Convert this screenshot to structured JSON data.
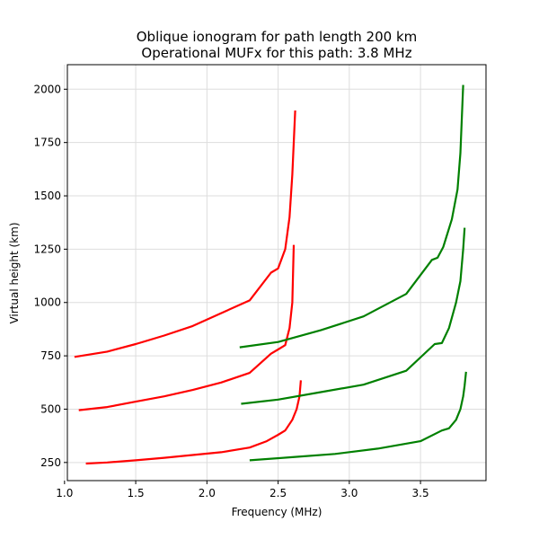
{
  "chart_data": {
    "type": "line",
    "title": "Oblique ionogram for path length 200 km",
    "subtitle": "Operational MUFx for this path: 3.8 MHz",
    "xlabel": "Frequency (MHz)",
    "ylabel": "Virtual height (km)",
    "xlim": [
      1.02,
      3.96
    ],
    "ylim": [
      165,
      2115
    ],
    "xticks": [
      1.0,
      1.5,
      2.0,
      2.5,
      3.0,
      3.5
    ],
    "xtick_labels": [
      "1.0",
      "1.5",
      "2.0",
      "2.5",
      "3.0",
      "3.5"
    ],
    "yticks": [
      250,
      500,
      750,
      1000,
      1250,
      1500,
      1750,
      2000
    ],
    "ytick_labels": [
      "250",
      "500",
      "750",
      "1000",
      "1250",
      "1500",
      "1750",
      "2000"
    ],
    "grid": true,
    "colors": {
      "red": "#ff0000",
      "green": "#008000"
    },
    "series": [
      {
        "color": "red",
        "x": [
          1.15,
          1.3,
          1.5,
          1.7,
          1.9,
          2.1,
          2.3,
          2.42,
          2.5,
          2.55,
          2.6,
          2.63,
          2.65,
          2.66
        ],
        "y": [
          245,
          250,
          260,
          272,
          285,
          298,
          320,
          350,
          380,
          400,
          450,
          500,
          560,
          635
        ]
      },
      {
        "color": "red",
        "x": [
          1.1,
          1.3,
          1.5,
          1.7,
          1.9,
          2.1,
          2.3,
          2.45,
          2.5,
          2.55,
          2.58,
          2.6,
          2.61
        ],
        "y": [
          495,
          510,
          535,
          560,
          590,
          625,
          670,
          760,
          780,
          800,
          880,
          1000,
          1270
        ]
      },
      {
        "color": "red",
        "x": [
          1.07,
          1.3,
          1.5,
          1.7,
          1.9,
          2.1,
          2.3,
          2.45,
          2.5,
          2.55,
          2.58,
          2.6,
          2.62
        ],
        "y": [
          745,
          770,
          805,
          845,
          890,
          950,
          1010,
          1140,
          1160,
          1250,
          1400,
          1600,
          1900
        ]
      },
      {
        "color": "green",
        "x": [
          2.3,
          2.6,
          2.9,
          3.2,
          3.5,
          3.65,
          3.7,
          3.75,
          3.78,
          3.8,
          3.81,
          3.82
        ],
        "y": [
          260,
          275,
          290,
          315,
          350,
          400,
          410,
          450,
          500,
          560,
          610,
          675
        ]
      },
      {
        "color": "green",
        "x": [
          2.24,
          2.5,
          2.8,
          3.1,
          3.4,
          3.6,
          3.65,
          3.7,
          3.75,
          3.78,
          3.8,
          3.81
        ],
        "y": [
          525,
          545,
          580,
          615,
          680,
          805,
          810,
          880,
          1000,
          1100,
          1250,
          1350
        ]
      },
      {
        "color": "green",
        "x": [
          2.23,
          2.5,
          2.8,
          3.1,
          3.4,
          3.58,
          3.62,
          3.66,
          3.72,
          3.76,
          3.78,
          3.8
        ],
        "y": [
          790,
          815,
          870,
          935,
          1040,
          1200,
          1210,
          1260,
          1390,
          1530,
          1700,
          2020
        ]
      }
    ]
  }
}
